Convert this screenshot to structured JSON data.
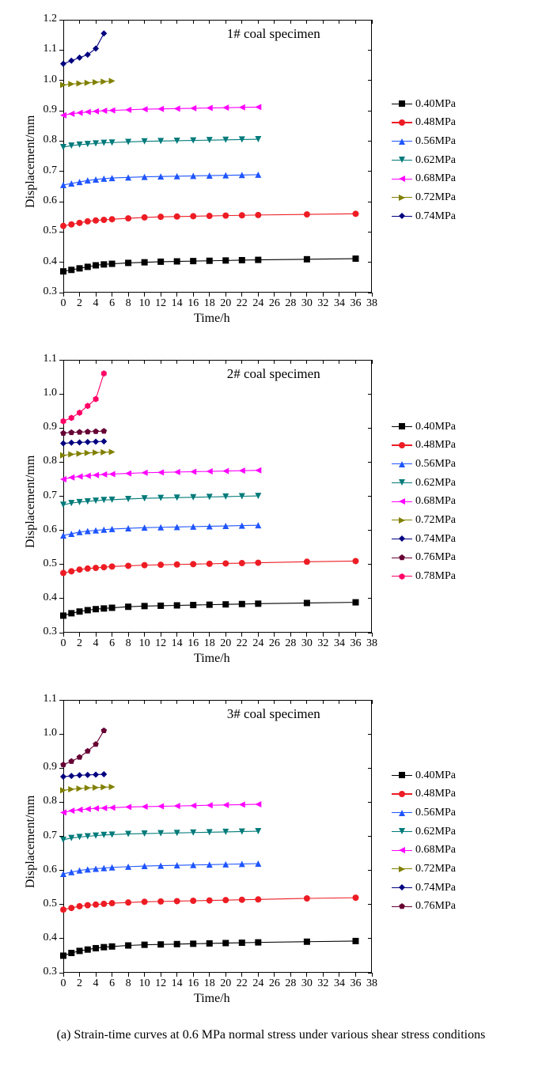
{
  "caption": "(a) Strain-time curves at 0.6 MPa normal stress under various shear stress conditions",
  "xlabel": "Time/h",
  "ylabel": "Displacement/mm",
  "series_colors": {
    "0.40MPa": "#000000",
    "0.48MPa": "#ed1c24",
    "0.56MPa": "#1f55ff",
    "0.62MPa": "#007a7a",
    "0.68MPa": "#ff00ff",
    "0.72MPa": "#808000",
    "0.74MPa": "#000080",
    "0.76MPa": "#660033",
    "0.78MPa": "#ff0066"
  },
  "series_markers": {
    "0.40MPa": "square",
    "0.48MPa": "circle",
    "0.56MPa": "triangle-up",
    "0.62MPa": "triangle-down",
    "0.68MPa": "triangle-left",
    "0.72MPa": "triangle-right",
    "0.74MPa": "diamond",
    "0.76MPa": "pentagon",
    "0.78MPa": "hexagon"
  },
  "series_fontsize": 14,
  "label_fontsize": 16,
  "tick_fontsize": 14,
  "title_fontsize": 17,
  "line_width": 1.1,
  "marker_size": 8,
  "background_color": "#ffffff",
  "border_color": "#000000",
  "charts": [
    {
      "title": "1# coal specimen",
      "xlim": [
        0,
        38
      ],
      "xtick_step": 2,
      "ylim": [
        0.3,
        1.2
      ],
      "ytick_step": 0.1,
      "legend_keys": [
        "0.40MPa",
        "0.48MPa",
        "0.56MPa",
        "0.62MPa",
        "0.68MPa",
        "0.72MPa",
        "0.74MPa"
      ],
      "series": {
        "0.40MPa": {
          "x": [
            0,
            1,
            2,
            3,
            4,
            5,
            6,
            8,
            10,
            12,
            14,
            16,
            18,
            20,
            22,
            24,
            30,
            36
          ],
          "y": [
            0.37,
            0.375,
            0.38,
            0.385,
            0.39,
            0.393,
            0.395,
            0.398,
            0.4,
            0.402,
            0.403,
            0.404,
            0.405,
            0.406,
            0.407,
            0.408,
            0.41,
            0.412
          ]
        },
        "0.48MPa": {
          "x": [
            0,
            1,
            2,
            3,
            4,
            5,
            6,
            8,
            10,
            12,
            14,
            16,
            18,
            20,
            22,
            24,
            30,
            36
          ],
          "y": [
            0.52,
            0.525,
            0.53,
            0.535,
            0.538,
            0.54,
            0.542,
            0.545,
            0.548,
            0.55,
            0.551,
            0.552,
            0.553,
            0.554,
            0.555,
            0.556,
            0.558,
            0.56
          ]
        },
        "0.56MPa": {
          "x": [
            0,
            1,
            2,
            3,
            4,
            5,
            6,
            8,
            10,
            12,
            14,
            16,
            18,
            20,
            22,
            24
          ],
          "y": [
            0.655,
            0.66,
            0.665,
            0.67,
            0.673,
            0.676,
            0.678,
            0.68,
            0.682,
            0.683,
            0.684,
            0.685,
            0.686,
            0.687,
            0.688,
            0.689
          ]
        },
        "0.62MPa": {
          "x": [
            0,
            1,
            2,
            3,
            4,
            5,
            6,
            8,
            10,
            12,
            14,
            16,
            18,
            20,
            22,
            24
          ],
          "y": [
            0.78,
            0.785,
            0.788,
            0.79,
            0.792,
            0.794,
            0.795,
            0.797,
            0.799,
            0.8,
            0.801,
            0.802,
            0.803,
            0.804,
            0.805,
            0.806
          ]
        },
        "0.68MPa": {
          "x": [
            0,
            1,
            2,
            3,
            4,
            5,
            6,
            8,
            10,
            12,
            14,
            16,
            18,
            20,
            22,
            24
          ],
          "y": [
            0.885,
            0.89,
            0.893,
            0.896,
            0.898,
            0.9,
            0.901,
            0.903,
            0.905,
            0.906,
            0.907,
            0.908,
            0.909,
            0.91,
            0.911,
            0.912
          ]
        },
        "0.72MPa": {
          "x": [
            0,
            1,
            2,
            3,
            4,
            5,
            6
          ],
          "y": [
            0.985,
            0.988,
            0.99,
            0.992,
            0.994,
            0.996,
            0.998
          ]
        },
        "0.74MPa": {
          "x": [
            0,
            1,
            2,
            3,
            4,
            5
          ],
          "y": [
            1.055,
            1.065,
            1.075,
            1.085,
            1.105,
            1.155
          ]
        }
      }
    },
    {
      "title": "2# coal specimen",
      "xlim": [
        0,
        38
      ],
      "xtick_step": 2,
      "ylim": [
        0.3,
        1.1
      ],
      "ytick_step": 0.1,
      "legend_keys": [
        "0.40MPa",
        "0.48MPa",
        "0.56MPa",
        "0.62MPa",
        "0.68MPa",
        "0.72MPa",
        "0.74MPa",
        "0.76MPa",
        "0.78MPa"
      ],
      "series": {
        "0.40MPa": {
          "x": [
            0,
            1,
            2,
            3,
            4,
            5,
            6,
            8,
            10,
            12,
            14,
            16,
            18,
            20,
            22,
            24,
            30,
            36
          ],
          "y": [
            0.35,
            0.357,
            0.362,
            0.366,
            0.369,
            0.371,
            0.373,
            0.376,
            0.378,
            0.379,
            0.38,
            0.381,
            0.382,
            0.383,
            0.384,
            0.385,
            0.387,
            0.389
          ]
        },
        "0.48MPa": {
          "x": [
            0,
            1,
            2,
            3,
            4,
            5,
            6,
            8,
            10,
            12,
            14,
            16,
            18,
            20,
            22,
            24,
            30,
            36
          ],
          "y": [
            0.475,
            0.48,
            0.485,
            0.488,
            0.49,
            0.492,
            0.494,
            0.496,
            0.498,
            0.499,
            0.5,
            0.501,
            0.502,
            0.503,
            0.504,
            0.505,
            0.508,
            0.51
          ]
        },
        "0.56MPa": {
          "x": [
            0,
            1,
            2,
            3,
            4,
            5,
            6,
            8,
            10,
            12,
            14,
            16,
            18,
            20,
            22,
            24
          ],
          "y": [
            0.585,
            0.59,
            0.595,
            0.598,
            0.6,
            0.602,
            0.604,
            0.606,
            0.608,
            0.609,
            0.61,
            0.611,
            0.612,
            0.613,
            0.614,
            0.615
          ]
        },
        "0.62MPa": {
          "x": [
            0,
            1,
            2,
            3,
            4,
            5,
            6,
            8,
            10,
            12,
            14,
            16,
            18,
            20,
            22,
            24
          ],
          "y": [
            0.675,
            0.68,
            0.683,
            0.685,
            0.687,
            0.689,
            0.69,
            0.692,
            0.694,
            0.695,
            0.696,
            0.697,
            0.698,
            0.699,
            0.7,
            0.701
          ]
        },
        "0.68MPa": {
          "x": [
            0,
            1,
            2,
            3,
            4,
            5,
            6,
            8,
            10,
            12,
            14,
            16,
            18,
            20,
            22,
            24
          ],
          "y": [
            0.75,
            0.755,
            0.758,
            0.76,
            0.762,
            0.764,
            0.765,
            0.767,
            0.769,
            0.77,
            0.771,
            0.772,
            0.773,
            0.774,
            0.775,
            0.776
          ]
        },
        "0.72MPa": {
          "x": [
            0,
            1,
            2,
            3,
            4,
            5,
            6
          ],
          "y": [
            0.82,
            0.823,
            0.825,
            0.827,
            0.828,
            0.829,
            0.83
          ]
        },
        "0.74MPa": {
          "x": [
            0,
            1,
            2,
            3,
            4,
            5
          ],
          "y": [
            0.855,
            0.857,
            0.858,
            0.859,
            0.86,
            0.861
          ]
        },
        "0.76MPa": {
          "x": [
            0,
            1,
            2,
            3,
            4,
            5
          ],
          "y": [
            0.885,
            0.887,
            0.888,
            0.889,
            0.89,
            0.891
          ]
        },
        "0.78MPa": {
          "x": [
            0,
            1,
            2,
            3,
            4,
            5
          ],
          "y": [
            0.92,
            0.93,
            0.945,
            0.965,
            0.985,
            1.06
          ]
        }
      }
    },
    {
      "title": "3# coal specimen",
      "xlim": [
        0,
        38
      ],
      "xtick_step": 2,
      "ylim": [
        0.3,
        1.1
      ],
      "ytick_step": 0.1,
      "legend_keys": [
        "0.40MPa",
        "0.48MPa",
        "0.56MPa",
        "0.62MPa",
        "0.68MPa",
        "0.72MPa",
        "0.74MPa",
        "0.76MPa"
      ],
      "series": {
        "0.40MPa": {
          "x": [
            0,
            1,
            2,
            3,
            4,
            5,
            6,
            8,
            10,
            12,
            14,
            16,
            18,
            20,
            22,
            24,
            30,
            36
          ],
          "y": [
            0.35,
            0.358,
            0.364,
            0.368,
            0.372,
            0.375,
            0.377,
            0.38,
            0.382,
            0.383,
            0.384,
            0.385,
            0.386,
            0.387,
            0.388,
            0.389,
            0.391,
            0.393
          ]
        },
        "0.48MPa": {
          "x": [
            0,
            1,
            2,
            3,
            4,
            5,
            6,
            8,
            10,
            12,
            14,
            16,
            18,
            20,
            22,
            24,
            30,
            36
          ],
          "y": [
            0.485,
            0.49,
            0.495,
            0.498,
            0.5,
            0.502,
            0.504,
            0.506,
            0.508,
            0.509,
            0.51,
            0.511,
            0.512,
            0.513,
            0.514,
            0.515,
            0.518,
            0.52
          ]
        },
        "0.56MPa": {
          "x": [
            0,
            1,
            2,
            3,
            4,
            5,
            6,
            8,
            10,
            12,
            14,
            16,
            18,
            20,
            22,
            24
          ],
          "y": [
            0.59,
            0.595,
            0.6,
            0.603,
            0.605,
            0.607,
            0.609,
            0.611,
            0.613,
            0.614,
            0.615,
            0.616,
            0.617,
            0.618,
            0.619,
            0.62
          ]
        },
        "0.62MPa": {
          "x": [
            0,
            1,
            2,
            3,
            4,
            5,
            6,
            8,
            10,
            12,
            14,
            16,
            18,
            20,
            22,
            24
          ],
          "y": [
            0.69,
            0.695,
            0.698,
            0.7,
            0.702,
            0.704,
            0.705,
            0.707,
            0.708,
            0.709,
            0.71,
            0.711,
            0.712,
            0.713,
            0.714,
            0.715
          ]
        },
        "0.68MPa": {
          "x": [
            0,
            1,
            2,
            3,
            4,
            5,
            6,
            8,
            10,
            12,
            14,
            16,
            18,
            20,
            22,
            24
          ],
          "y": [
            0.77,
            0.775,
            0.778,
            0.78,
            0.782,
            0.783,
            0.784,
            0.786,
            0.787,
            0.788,
            0.789,
            0.79,
            0.791,
            0.792,
            0.793,
            0.794
          ]
        },
        "0.72MPa": {
          "x": [
            0,
            1,
            2,
            3,
            4,
            5,
            6
          ],
          "y": [
            0.835,
            0.838,
            0.84,
            0.842,
            0.843,
            0.844,
            0.845
          ]
        },
        "0.74MPa": {
          "x": [
            0,
            1,
            2,
            3,
            4,
            5
          ],
          "y": [
            0.875,
            0.877,
            0.879,
            0.88,
            0.881,
            0.882
          ]
        },
        "0.76MPa": {
          "x": [
            0,
            1,
            2,
            3,
            4,
            5
          ],
          "y": [
            0.91,
            0.92,
            0.932,
            0.95,
            0.97,
            1.01
          ]
        }
      }
    }
  ]
}
